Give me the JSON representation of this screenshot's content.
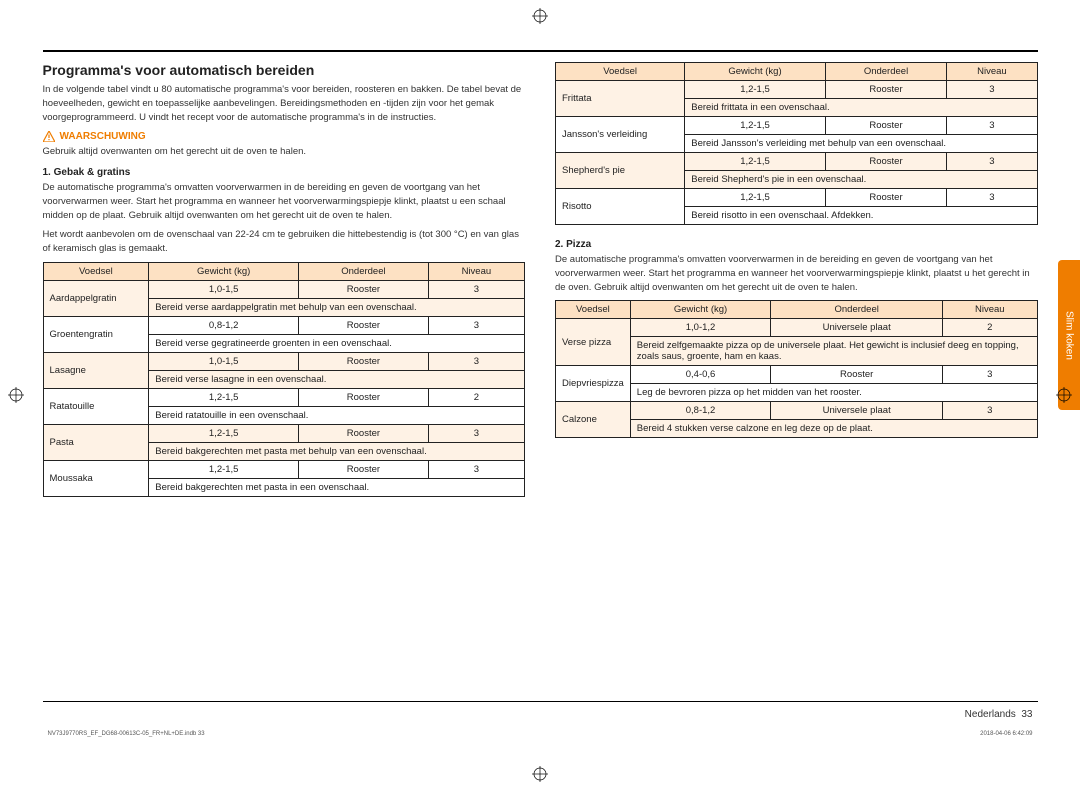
{
  "section_title": "Programma's voor automatisch bereiden",
  "intro": "In de volgende tabel vindt u 80 automatische programma's voor bereiden, roosteren en bakken. De tabel bevat de hoeveelheden, gewicht en toepasselijke aanbevelingen. Bereidingsmethoden en -tijden zijn voor het gemak voorgeprogrammeerd. U vindt het recept voor de automatische programma's in de instructies.",
  "warning_label": "WAARSCHUWING",
  "warning_text": "Gebruik altijd ovenwanten om het gerecht uit de oven te halen.",
  "section1_title": "1. Gebak & gratins",
  "section1_p1": "De automatische programma's omvatten voorverwarmen in de bereiding en geven de voortgang van het voorverwarmen weer. Start het programma en wanneer het voorverwarmingspiepje klinkt, plaatst u een schaal midden op de plaat. Gebruik altijd ovenwanten om het gerecht uit de oven te halen.",
  "section1_p2": "Het wordt aanbevolen om de ovenschaal van 22-24 cm te gebruiken die hittebestendig is (tot 300 °C) en van glas of keramisch glas is gemaakt.",
  "headers": {
    "c0": "Voedsel",
    "c1": "Gewicht (kg)",
    "c2": "Onderdeel",
    "c3": "Niveau"
  },
  "table1": [
    {
      "name": "Aardappelgratin",
      "w": "1,0-1,5",
      "p": "Rooster",
      "l": "3",
      "desc": "Bereid verse aardappelgratin met behulp van een ovenschaal."
    },
    {
      "name": "Groentengratin",
      "w": "0,8-1,2",
      "p": "Rooster",
      "l": "3",
      "desc": "Bereid verse gegratineerde groenten in een ovenschaal."
    },
    {
      "name": "Lasagne",
      "w": "1,0-1,5",
      "p": "Rooster",
      "l": "3",
      "desc": "Bereid verse lasagne in een ovenschaal."
    },
    {
      "name": "Ratatouille",
      "w": "1,2-1,5",
      "p": "Rooster",
      "l": "2",
      "desc": "Bereid ratatouille in een ovenschaal."
    },
    {
      "name": "Pasta",
      "w": "1,2-1,5",
      "p": "Rooster",
      "l": "3",
      "desc": "Bereid bakgerechten met pasta met behulp van een ovenschaal."
    },
    {
      "name": "Moussaka",
      "w": "1,2-1,5",
      "p": "Rooster",
      "l": "3",
      "desc": "Bereid bakgerechten met pasta in een ovenschaal."
    }
  ],
  "table2": [
    {
      "name": "Frittata",
      "w": "1,2-1,5",
      "p": "Rooster",
      "l": "3",
      "desc": "Bereid frittata in een ovenschaal."
    },
    {
      "name": "Jansson's verleiding",
      "w": "1,2-1,5",
      "p": "Rooster",
      "l": "3",
      "desc": "Bereid Jansson's verleiding met behulp van een ovenschaal."
    },
    {
      "name": "Shepherd's pie",
      "w": "1,2-1,5",
      "p": "Rooster",
      "l": "3",
      "desc": "Bereid Shepherd's pie in een ovenschaal."
    },
    {
      "name": "Risotto",
      "w": "1,2-1,5",
      "p": "Rooster",
      "l": "3",
      "desc": "Bereid risotto in een ovenschaal. Afdekken."
    }
  ],
  "section2_title": "2. Pizza",
  "section2_p1": "De automatische programma's omvatten voorverwarmen in de bereiding en geven de voortgang van het voorverwarmen weer. Start het programma en wanneer het voorverwarmingspiepje klinkt, plaatst u het gerecht in de oven. Gebruik altijd ovenwanten om het gerecht uit de oven te halen.",
  "table3": [
    {
      "name": "Verse pizza",
      "w": "1,0-1,2",
      "p": "Universele plaat",
      "l": "2",
      "desc": "Bereid zelfgemaakte pizza op de universele plaat. Het gewicht is inclusief deeg en topping, zoals saus, groente, ham en kaas."
    },
    {
      "name": "Diepvriespizza",
      "w": "0,4-0,6",
      "p": "Rooster",
      "l": "3",
      "desc": "Leg de bevroren pizza op het midden van het rooster."
    },
    {
      "name": "Calzone",
      "w": "0,8-1,2",
      "p": "Universele plaat",
      "l": "3",
      "desc": "Bereid 4 stukken verse calzone en leg deze op de plaat."
    }
  ],
  "footer_lang": "Nederlands",
  "footer_page": "33",
  "side_tab": "Slim koken",
  "print_file": "NV73J9770RS_EF_DG68-00613C-05_FR+NL+DE.indb   33",
  "print_time": "2018-04-06   6:42:09"
}
